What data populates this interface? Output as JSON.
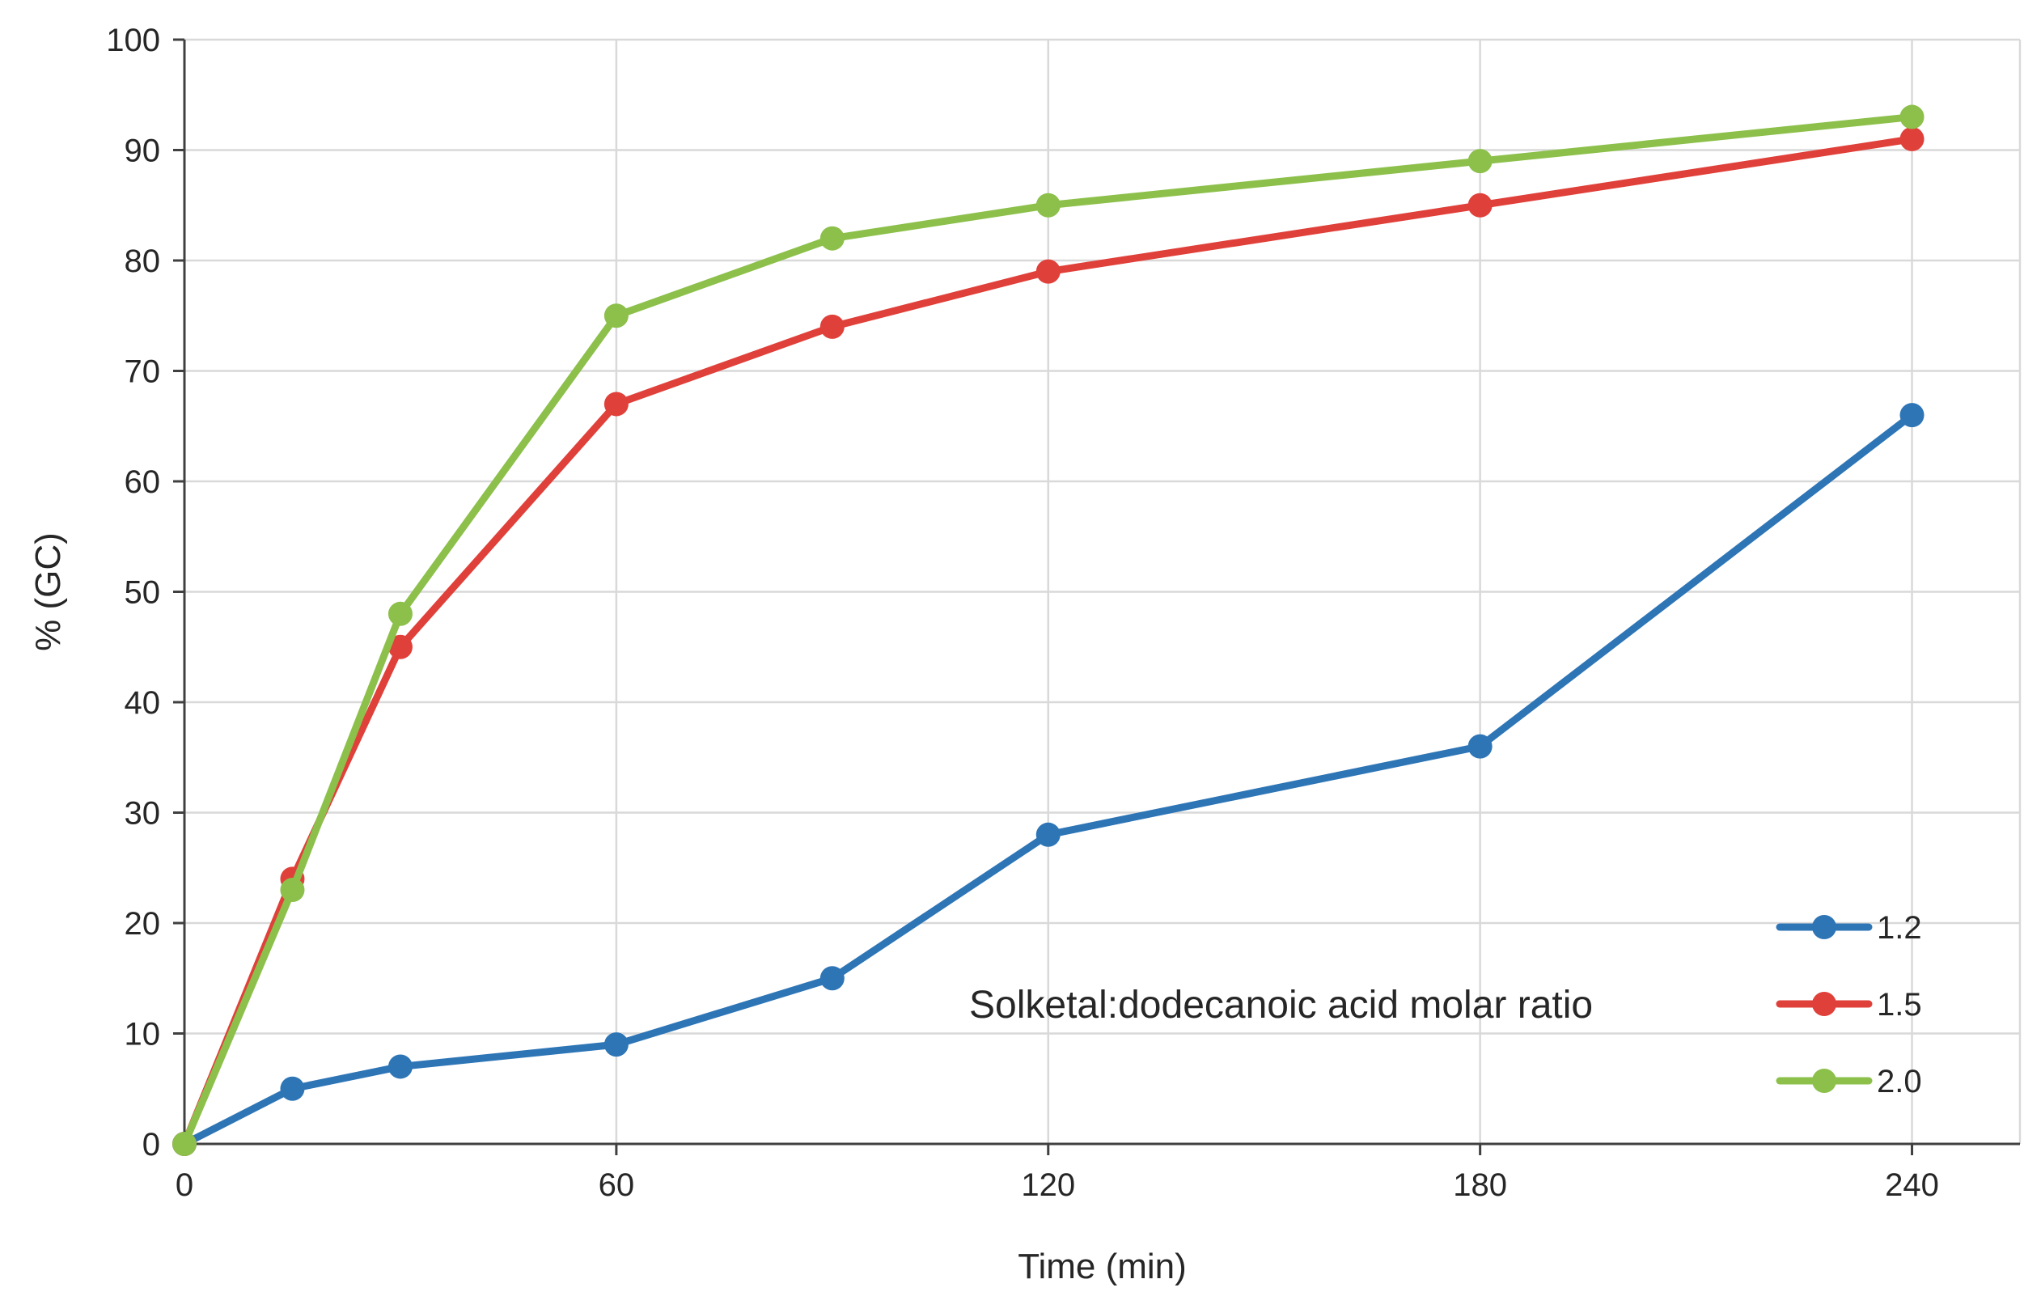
{
  "chart_data": {
    "type": "line",
    "title": "",
    "xlabel": "Time (min)",
    "ylabel": "% (GC)",
    "xlim": [
      0,
      255
    ],
    "ylim": [
      0,
      100
    ],
    "xticks": [
      0,
      60,
      120,
      180,
      240
    ],
    "yticks": [
      0,
      10,
      20,
      30,
      40,
      50,
      60,
      70,
      80,
      90,
      100
    ],
    "grid": true,
    "legend_position": "bottom-right",
    "annotation": "Solketal:dodecanoic acid molar ratio",
    "x": [
      0,
      15,
      30,
      60,
      90,
      120,
      180,
      240
    ],
    "series": [
      {
        "name": "1.2",
        "color": "#2e75b6",
        "values": [
          0,
          5,
          7,
          9,
          15,
          28,
          36,
          66
        ]
      },
      {
        "name": "1.5",
        "color": "#e0403a",
        "values": [
          0,
          24,
          45,
          67,
          74,
          79,
          85,
          91
        ]
      },
      {
        "name": "2.0",
        "color": "#8cc04b",
        "values": [
          0,
          23,
          48,
          75,
          82,
          85,
          89,
          93
        ]
      }
    ]
  }
}
